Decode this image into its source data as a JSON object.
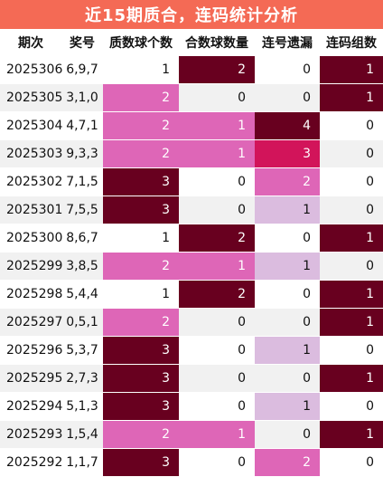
{
  "title": "近15期质合，连码统计分析",
  "headers": [
    "期次",
    "奖号",
    "质数球个数",
    "合数球数量",
    "连号遗漏",
    "连码组数"
  ],
  "colors": {
    "title_bg": "#f46a55",
    "dark": "#68001f",
    "pink": "#de66b7",
    "red": "#d2145a",
    "light": "#dbbcdf",
    "stripe": "#f1f1f1"
  },
  "rows": [
    {
      "period": "2025306",
      "award": "6,9,7",
      "prime": "1",
      "composite": "2",
      "consec_miss": "0",
      "consec_groups": "1"
    },
    {
      "period": "2025305",
      "award": "3,1,0",
      "prime": "2",
      "composite": "0",
      "consec_miss": "0",
      "consec_groups": "1"
    },
    {
      "period": "2025304",
      "award": "4,7,1",
      "prime": "2",
      "composite": "1",
      "consec_miss": "4",
      "consec_groups": "0"
    },
    {
      "period": "2025303",
      "award": "9,3,3",
      "prime": "2",
      "composite": "1",
      "consec_miss": "3",
      "consec_groups": "0"
    },
    {
      "period": "2025302",
      "award": "7,1,5",
      "prime": "3",
      "composite": "0",
      "consec_miss": "2",
      "consec_groups": "0"
    },
    {
      "period": "2025301",
      "award": "7,5,5",
      "prime": "3",
      "composite": "0",
      "consec_miss": "1",
      "consec_groups": "0"
    },
    {
      "period": "2025300",
      "award": "8,6,7",
      "prime": "1",
      "composite": "2",
      "consec_miss": "0",
      "consec_groups": "1"
    },
    {
      "period": "2025299",
      "award": "3,8,5",
      "prime": "2",
      "composite": "1",
      "consec_miss": "1",
      "consec_groups": "0"
    },
    {
      "period": "2025298",
      "award": "5,4,4",
      "prime": "1",
      "composite": "2",
      "consec_miss": "0",
      "consec_groups": "1"
    },
    {
      "period": "2025297",
      "award": "0,5,1",
      "prime": "2",
      "composite": "0",
      "consec_miss": "0",
      "consec_groups": "1"
    },
    {
      "period": "2025296",
      "award": "5,3,7",
      "prime": "3",
      "composite": "0",
      "consec_miss": "1",
      "consec_groups": "0"
    },
    {
      "period": "2025295",
      "award": "2,7,3",
      "prime": "3",
      "composite": "0",
      "consec_miss": "0",
      "consec_groups": "1"
    },
    {
      "period": "2025294",
      "award": "5,1,3",
      "prime": "3",
      "composite": "0",
      "consec_miss": "1",
      "consec_groups": "0"
    },
    {
      "period": "2025293",
      "award": "1,5,4",
      "prime": "2",
      "composite": "1",
      "consec_miss": "0",
      "consec_groups": "1"
    },
    {
      "period": "2025292",
      "award": "1,1,7",
      "prime": "3",
      "composite": "0",
      "consec_miss": "2",
      "consec_groups": "0"
    }
  ]
}
